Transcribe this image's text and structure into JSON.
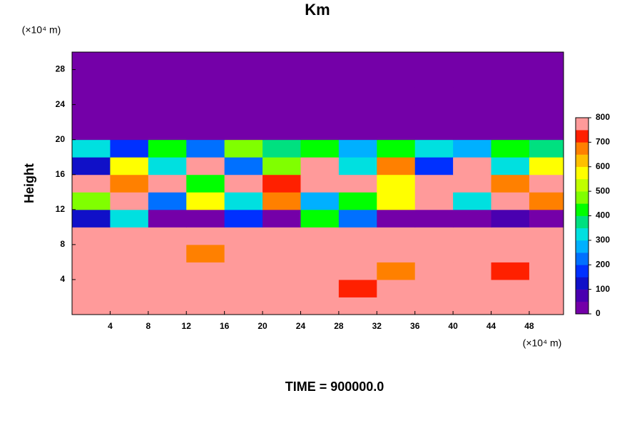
{
  "chart_data": {
    "type": "heatmap",
    "title": "Km",
    "xlabel": "(×10⁴ m)",
    "ylabel": "Height",
    "ylabel_unit": "(×10⁴ m)",
    "footer": "TIME = 900000.0",
    "x": [
      2,
      6,
      10,
      14,
      18,
      22,
      26,
      30,
      34,
      38,
      42,
      46,
      50
    ],
    "y": [
      1,
      3,
      5,
      7,
      9,
      11,
      13,
      15,
      17,
      19,
      21,
      23,
      25,
      27,
      29
    ],
    "z": [
      [
        800,
        800,
        800,
        800,
        800,
        800,
        800,
        800,
        800,
        800,
        800,
        800,
        800
      ],
      [
        800,
        800,
        800,
        800,
        800,
        800,
        800,
        750,
        800,
        800,
        800,
        800,
        800
      ],
      [
        800,
        800,
        800,
        800,
        800,
        800,
        800,
        800,
        700,
        800,
        800,
        750,
        800
      ],
      [
        800,
        800,
        800,
        700,
        800,
        800,
        800,
        800,
        800,
        800,
        800,
        800,
        800
      ],
      [
        800,
        800,
        800,
        800,
        800,
        800,
        800,
        800,
        800,
        800,
        800,
        800,
        800
      ],
      [
        100,
        300,
        0,
        0,
        150,
        0,
        400,
        200,
        0,
        0,
        0,
        50,
        0
      ],
      [
        500,
        800,
        200,
        600,
        300,
        700,
        250,
        400,
        600,
        800,
        300,
        800,
        700
      ],
      [
        800,
        700,
        800,
        400,
        800,
        750,
        800,
        800,
        600,
        800,
        800,
        700,
        800
      ],
      [
        100,
        600,
        300,
        800,
        200,
        500,
        800,
        300,
        700,
        150,
        800,
        300,
        600
      ],
      [
        300,
        150,
        450,
        200,
        500,
        350,
        400,
        250,
        450,
        300,
        250,
        400,
        350
      ],
      [
        0,
        0,
        0,
        0,
        0,
        0,
        0,
        0,
        0,
        0,
        0,
        0,
        0
      ],
      [
        0,
        0,
        0,
        0,
        0,
        0,
        0,
        0,
        0,
        0,
        0,
        0,
        0
      ],
      [
        0,
        0,
        0,
        0,
        0,
        0,
        0,
        0,
        0,
        0,
        0,
        0,
        0
      ],
      [
        0,
        0,
        0,
        0,
        0,
        0,
        0,
        0,
        0,
        0,
        0,
        0,
        0
      ],
      [
        0,
        0,
        0,
        0,
        0,
        0,
        0,
        0,
        0,
        0,
        0,
        0,
        0
      ]
    ],
    "xlim": [
      0,
      51.6
    ],
    "ylim": [
      0,
      30
    ],
    "xticks": [
      4,
      8,
      12,
      16,
      20,
      24,
      28,
      32,
      36,
      40,
      44,
      48
    ],
    "yticks": [
      4,
      8,
      12,
      16,
      20,
      24,
      28
    ],
    "zlim": [
      0,
      800
    ],
    "zticks": [
      0,
      100,
      200,
      300,
      400,
      500,
      600,
      700,
      800
    ],
    "colors": [
      "#7400a8",
      "#4a00b0",
      "#1010c8",
      "#0030ff",
      "#0070ff",
      "#00b0ff",
      "#00e0e0",
      "#00e080",
      "#00ff00",
      "#80ff00",
      "#c0ff00",
      "#ffff00",
      "#ffc000",
      "#ff8000",
      "#ff2000",
      "#ff9a9a"
    ]
  }
}
